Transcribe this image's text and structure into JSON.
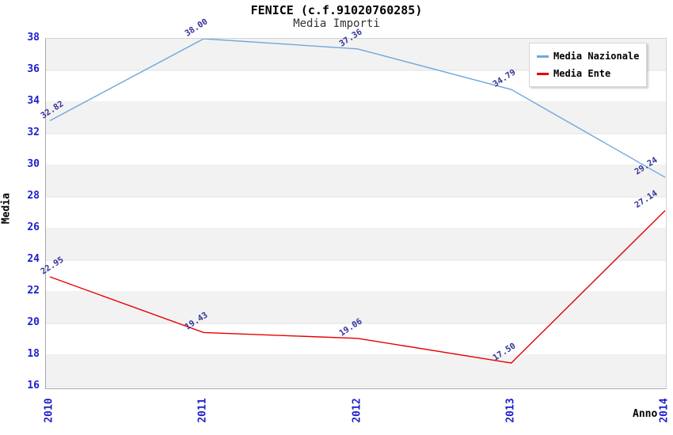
{
  "chart_data": {
    "type": "line",
    "title": "FENICE (c.f.91020760285)",
    "subtitle": "Media Importi",
    "xlabel": "Anno",
    "ylabel": "Media",
    "categories": [
      "2010",
      "2011",
      "2012",
      "2013",
      "2014"
    ],
    "yticks": [
      38,
      36,
      34,
      32,
      30,
      28,
      26,
      24,
      22,
      20,
      18,
      16
    ],
    "ylim": [
      16,
      38
    ],
    "grid": "horizontal-bands",
    "legend_position": "top-right-inside",
    "series": [
      {
        "name": "Media Nazionale",
        "color": "#6fa8dc",
        "values": [
          32.82,
          38.0,
          37.36,
          34.79,
          29.24
        ],
        "labels": [
          "32.82",
          "38.00",
          "37.36",
          "34.79",
          "29.24"
        ]
      },
      {
        "name": "Media Ente",
        "color": "#e60000",
        "values": [
          22.95,
          19.43,
          19.06,
          17.5,
          27.14
        ],
        "labels": [
          "22.95",
          "19.43",
          "19.06",
          "17.50",
          "27.14"
        ]
      }
    ],
    "colors": {
      "tick_label": "#2020cc",
      "data_label": "#333399",
      "band": "#f2f2f2",
      "gridline": "#e3e3e3",
      "plot_background": "#ffffff",
      "title": "#000000",
      "subtitle": "#333333"
    }
  }
}
